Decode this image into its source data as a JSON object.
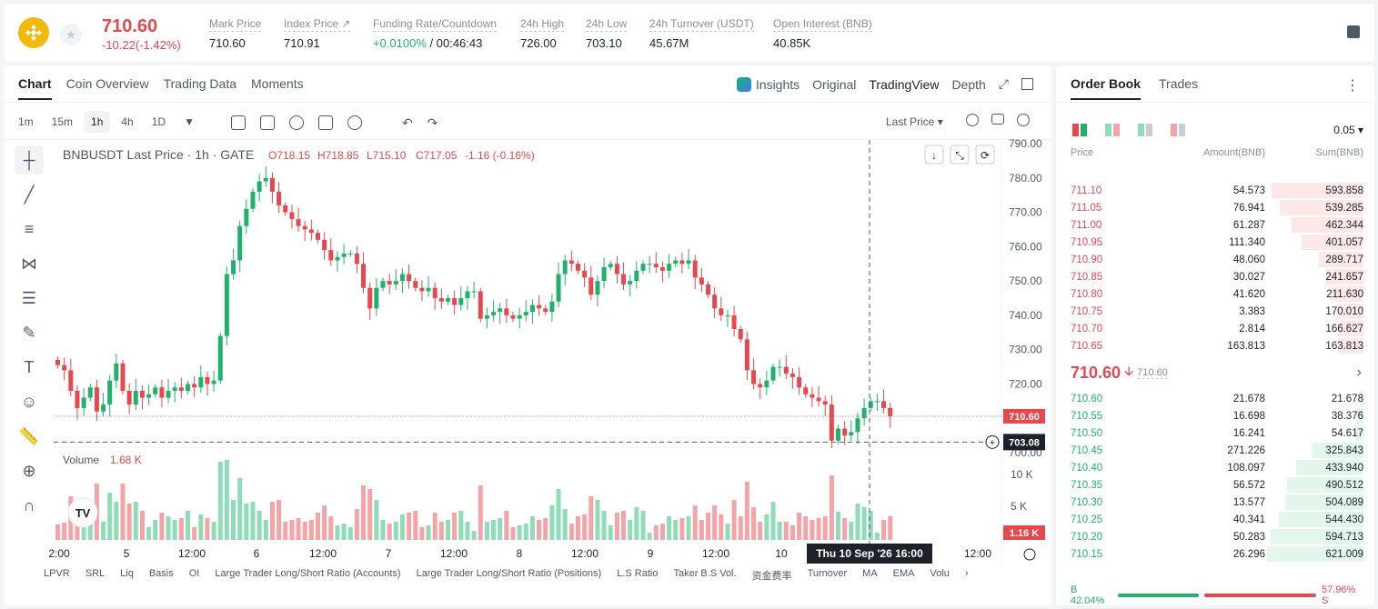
{
  "header": {
    "price": "710.60",
    "change": "-10.22(-1.42%)",
    "stats": [
      {
        "label": "Mark Price",
        "value": "710.60"
      },
      {
        "label": "Index Price ↗",
        "value": "710.91"
      },
      {
        "label": "Funding Rate/Countdown",
        "value_green": "+0.0100%",
        "value": " / 00:46:43"
      },
      {
        "label": "24h High",
        "value": "726.00"
      },
      {
        "label": "24h Low",
        "value": "703.10"
      },
      {
        "label": "24h Turnover (USDT)",
        "value": "45.67M"
      },
      {
        "label": "Open Interest (BNB)",
        "value": "40.85K"
      }
    ]
  },
  "chart_tabs": [
    "Chart",
    "Coin Overview",
    "Trading Data",
    "Moments"
  ],
  "view_tabs": {
    "insights": "Insights",
    "original": "Original",
    "tradingview": "TradingView",
    "depth": "Depth"
  },
  "timeframes": [
    "1m",
    "15m",
    "1h",
    "4h",
    "1D"
  ],
  "price_source": "Last Price",
  "legend": {
    "symbol": "BNBUSDT Last Price · 1h · GATE",
    "o": "O718.15",
    "h": "H718.85",
    "l": "L715.10",
    "c": "C717.05",
    "chg": "-1.16 (-0.16%)",
    "volume_label": "Volume",
    "volume_value": "1.68 K"
  },
  "bottom_indicators": [
    "LPVR",
    "SRL",
    "Liq",
    "Basis",
    "OI",
    "Large Trader Long/Short Ratio (Accounts)",
    "Large Trader Long/Short Ratio (Positions)",
    "L.S Ratio",
    "Taker B.S Vol.",
    "资金费率",
    "Turnover",
    "MA",
    "EMA",
    "Volu"
  ],
  "chart_data": {
    "type": "candlestick",
    "title": "BNBUSDT Last Price · 1h · GATE",
    "y_ticks": [
      "790.00",
      "780.00",
      "770.00",
      "760.00",
      "750.00",
      "740.00",
      "730.00",
      "720.00",
      "700.00"
    ],
    "ylim": [
      700,
      790
    ],
    "vol_ticks": [
      "10 K",
      "5 K"
    ],
    "x_ticks": [
      "2:00",
      "5",
      "12:00",
      "6",
      "12:00",
      "7",
      "12:00",
      "8",
      "12:00",
      "9",
      "12:00",
      "10",
      "12:00"
    ],
    "last_price_label": "710.60",
    "crosshair_price": "703.08",
    "crosshair_time": "Thu 10 Sep '26   16:00",
    "vol_last": "1.16 K",
    "closes": [
      725.5,
      724,
      718,
      713,
      716,
      719,
      712,
      714,
      721,
      726,
      718,
      714,
      718,
      716,
      717,
      719,
      716,
      718,
      719,
      718,
      720,
      719,
      722,
      720,
      721,
      734,
      752,
      756,
      766,
      771,
      776,
      779,
      780,
      776,
      772,
      770,
      768,
      766,
      765,
      764,
      762,
      759,
      756,
      757,
      758,
      758,
      755,
      748,
      742,
      748,
      750,
      749,
      750,
      752,
      750,
      748,
      747,
      748,
      745,
      744,
      745,
      743,
      745,
      747,
      747,
      739,
      740,
      741,
      742,
      740,
      739,
      740,
      741,
      743,
      742,
      741,
      744,
      752,
      756,
      755,
      753,
      751,
      746,
      750,
      754,
      755,
      752,
      749,
      750,
      753,
      755,
      755,
      754,
      753,
      755,
      756,
      755,
      756,
      751,
      749,
      746,
      742,
      740,
      740,
      736,
      733,
      724,
      720,
      719,
      721,
      725,
      725,
      723,
      722,
      719,
      717,
      716,
      715,
      714,
      703.5,
      707,
      705,
      706,
      710,
      713,
      715,
      715,
      713,
      710.6
    ]
  },
  "orderbook": {
    "tabs": [
      "Order Book",
      "Trades"
    ],
    "step": "0.05",
    "headers": [
      "Price",
      "Amount(BNB)",
      "Sum(BNB)"
    ],
    "asks": [
      {
        "price": "711.10",
        "amount": "54.573",
        "sum": "593.858",
        "pct": 0.956
      },
      {
        "price": "711.05",
        "amount": "76.941",
        "sum": "539.285",
        "pct": 0.868
      },
      {
        "price": "711.00",
        "amount": "61.287",
        "sum": "462.344",
        "pct": 0.744
      },
      {
        "price": "710.95",
        "amount": "111.340",
        "sum": "401.057",
        "pct": 0.646
      },
      {
        "price": "710.90",
        "amount": "48.060",
        "sum": "289.717",
        "pct": 0.466
      },
      {
        "price": "710.85",
        "amount": "30.027",
        "sum": "241.657",
        "pct": 0.389
      },
      {
        "price": "710.80",
        "amount": "41.620",
        "sum": "211.630",
        "pct": 0.341
      },
      {
        "price": "710.75",
        "amount": "3.383",
        "sum": "170.010",
        "pct": 0.274
      },
      {
        "price": "710.70",
        "amount": "2.814",
        "sum": "166.627",
        "pct": 0.268
      },
      {
        "price": "710.65",
        "amount": "163.813",
        "sum": "163.813",
        "pct": 0.264
      }
    ],
    "mid_price": "710.60",
    "mid_index": "710.60",
    "bids": [
      {
        "price": "710.60",
        "amount": "21.678",
        "sum": "21.678",
        "pct": 0.035
      },
      {
        "price": "710.55",
        "amount": "16.698",
        "sum": "38.376",
        "pct": 0.062
      },
      {
        "price": "710.50",
        "amount": "16.241",
        "sum": "54.617",
        "pct": 0.088
      },
      {
        "price": "710.45",
        "amount": "271.226",
        "sum": "325.843",
        "pct": 0.525
      },
      {
        "price": "710.40",
        "amount": "108.097",
        "sum": "433.940",
        "pct": 0.699
      },
      {
        "price": "710.35",
        "amount": "56.572",
        "sum": "490.512",
        "pct": 0.79
      },
      {
        "price": "710.30",
        "amount": "13.577",
        "sum": "504.089",
        "pct": 0.812
      },
      {
        "price": "710.25",
        "amount": "40.341",
        "sum": "544.430",
        "pct": 0.877
      },
      {
        "price": "710.20",
        "amount": "50.283",
        "sum": "594.713",
        "pct": 0.958
      },
      {
        "price": "710.15",
        "amount": "26.296",
        "sum": "621.009",
        "pct": 1.0
      }
    ],
    "buy_label": "B 42.04%",
    "sell_label": "57.96% S",
    "buy_pct": 0.4204
  },
  "colors": {
    "up": "#20b26c",
    "down": "#e5484d",
    "up_light": "#8fdcb8",
    "down_light": "#f4a3a6",
    "accent": "#1d2129"
  }
}
